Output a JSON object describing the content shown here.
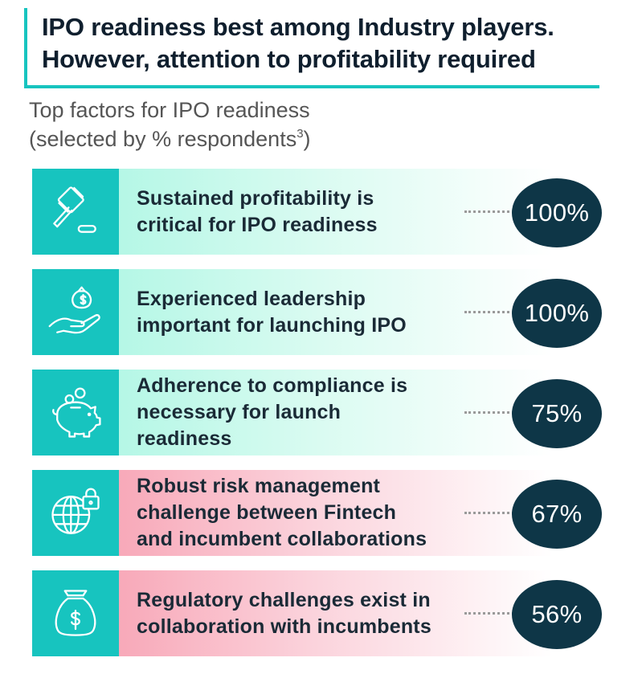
{
  "header": {
    "title_line1": "IPO readiness best among Industry players.",
    "title_line2": "However, attention to profitability required",
    "accent_color": "#17c4bf"
  },
  "subtitle": {
    "line1": "Top factors for IPO readiness",
    "line2": "(selected by % respondents",
    "footnote": "3",
    "line2_end": ")"
  },
  "chart_data": {
    "type": "bar",
    "unit": "%",
    "categories": [
      "Sustained profitability is critical for IPO readiness",
      "Experienced leadership important for launching IPO",
      "Adherence to compliance is necessary for launch readiness",
      "Robust risk management challenge between Fintech and incumbent collaborations",
      "Regulatory challenges exist in collaboration with incumbents"
    ],
    "values": [
      100,
      100,
      75,
      67,
      56
    ],
    "value_labels": [
      "100%",
      "100%",
      "75%",
      "67%",
      "56%"
    ]
  },
  "rows": [
    {
      "icon": "gavel-icon",
      "line1": "Sustained profitability is",
      "line2": "critical for IPO readiness",
      "line3": "",
      "band": "green"
    },
    {
      "icon": "hand-money-bag-icon",
      "line1": "Experienced leadership",
      "line2": "important for launching IPO",
      "line3": "",
      "band": "green"
    },
    {
      "icon": "piggy-bank-icon",
      "line1": "Adherence to compliance is",
      "line2": "necessary for launch",
      "line3": "readiness",
      "band": "green"
    },
    {
      "icon": "globe-lock-icon",
      "line1": "Robust risk management",
      "line2": "challenge between Fintech",
      "line3": "and incumbent collaborations",
      "band": "pink"
    },
    {
      "icon": "money-bag-icon",
      "line1": "Regulatory challenges exist in",
      "line2": "collaboration with incumbents",
      "line3": "",
      "band": "pink"
    }
  ],
  "colors": {
    "icon_box": "#17c4bf",
    "bubble": "#0e3647",
    "green_band": "#b5f7e6",
    "pink_band": "#f8a9b9"
  }
}
